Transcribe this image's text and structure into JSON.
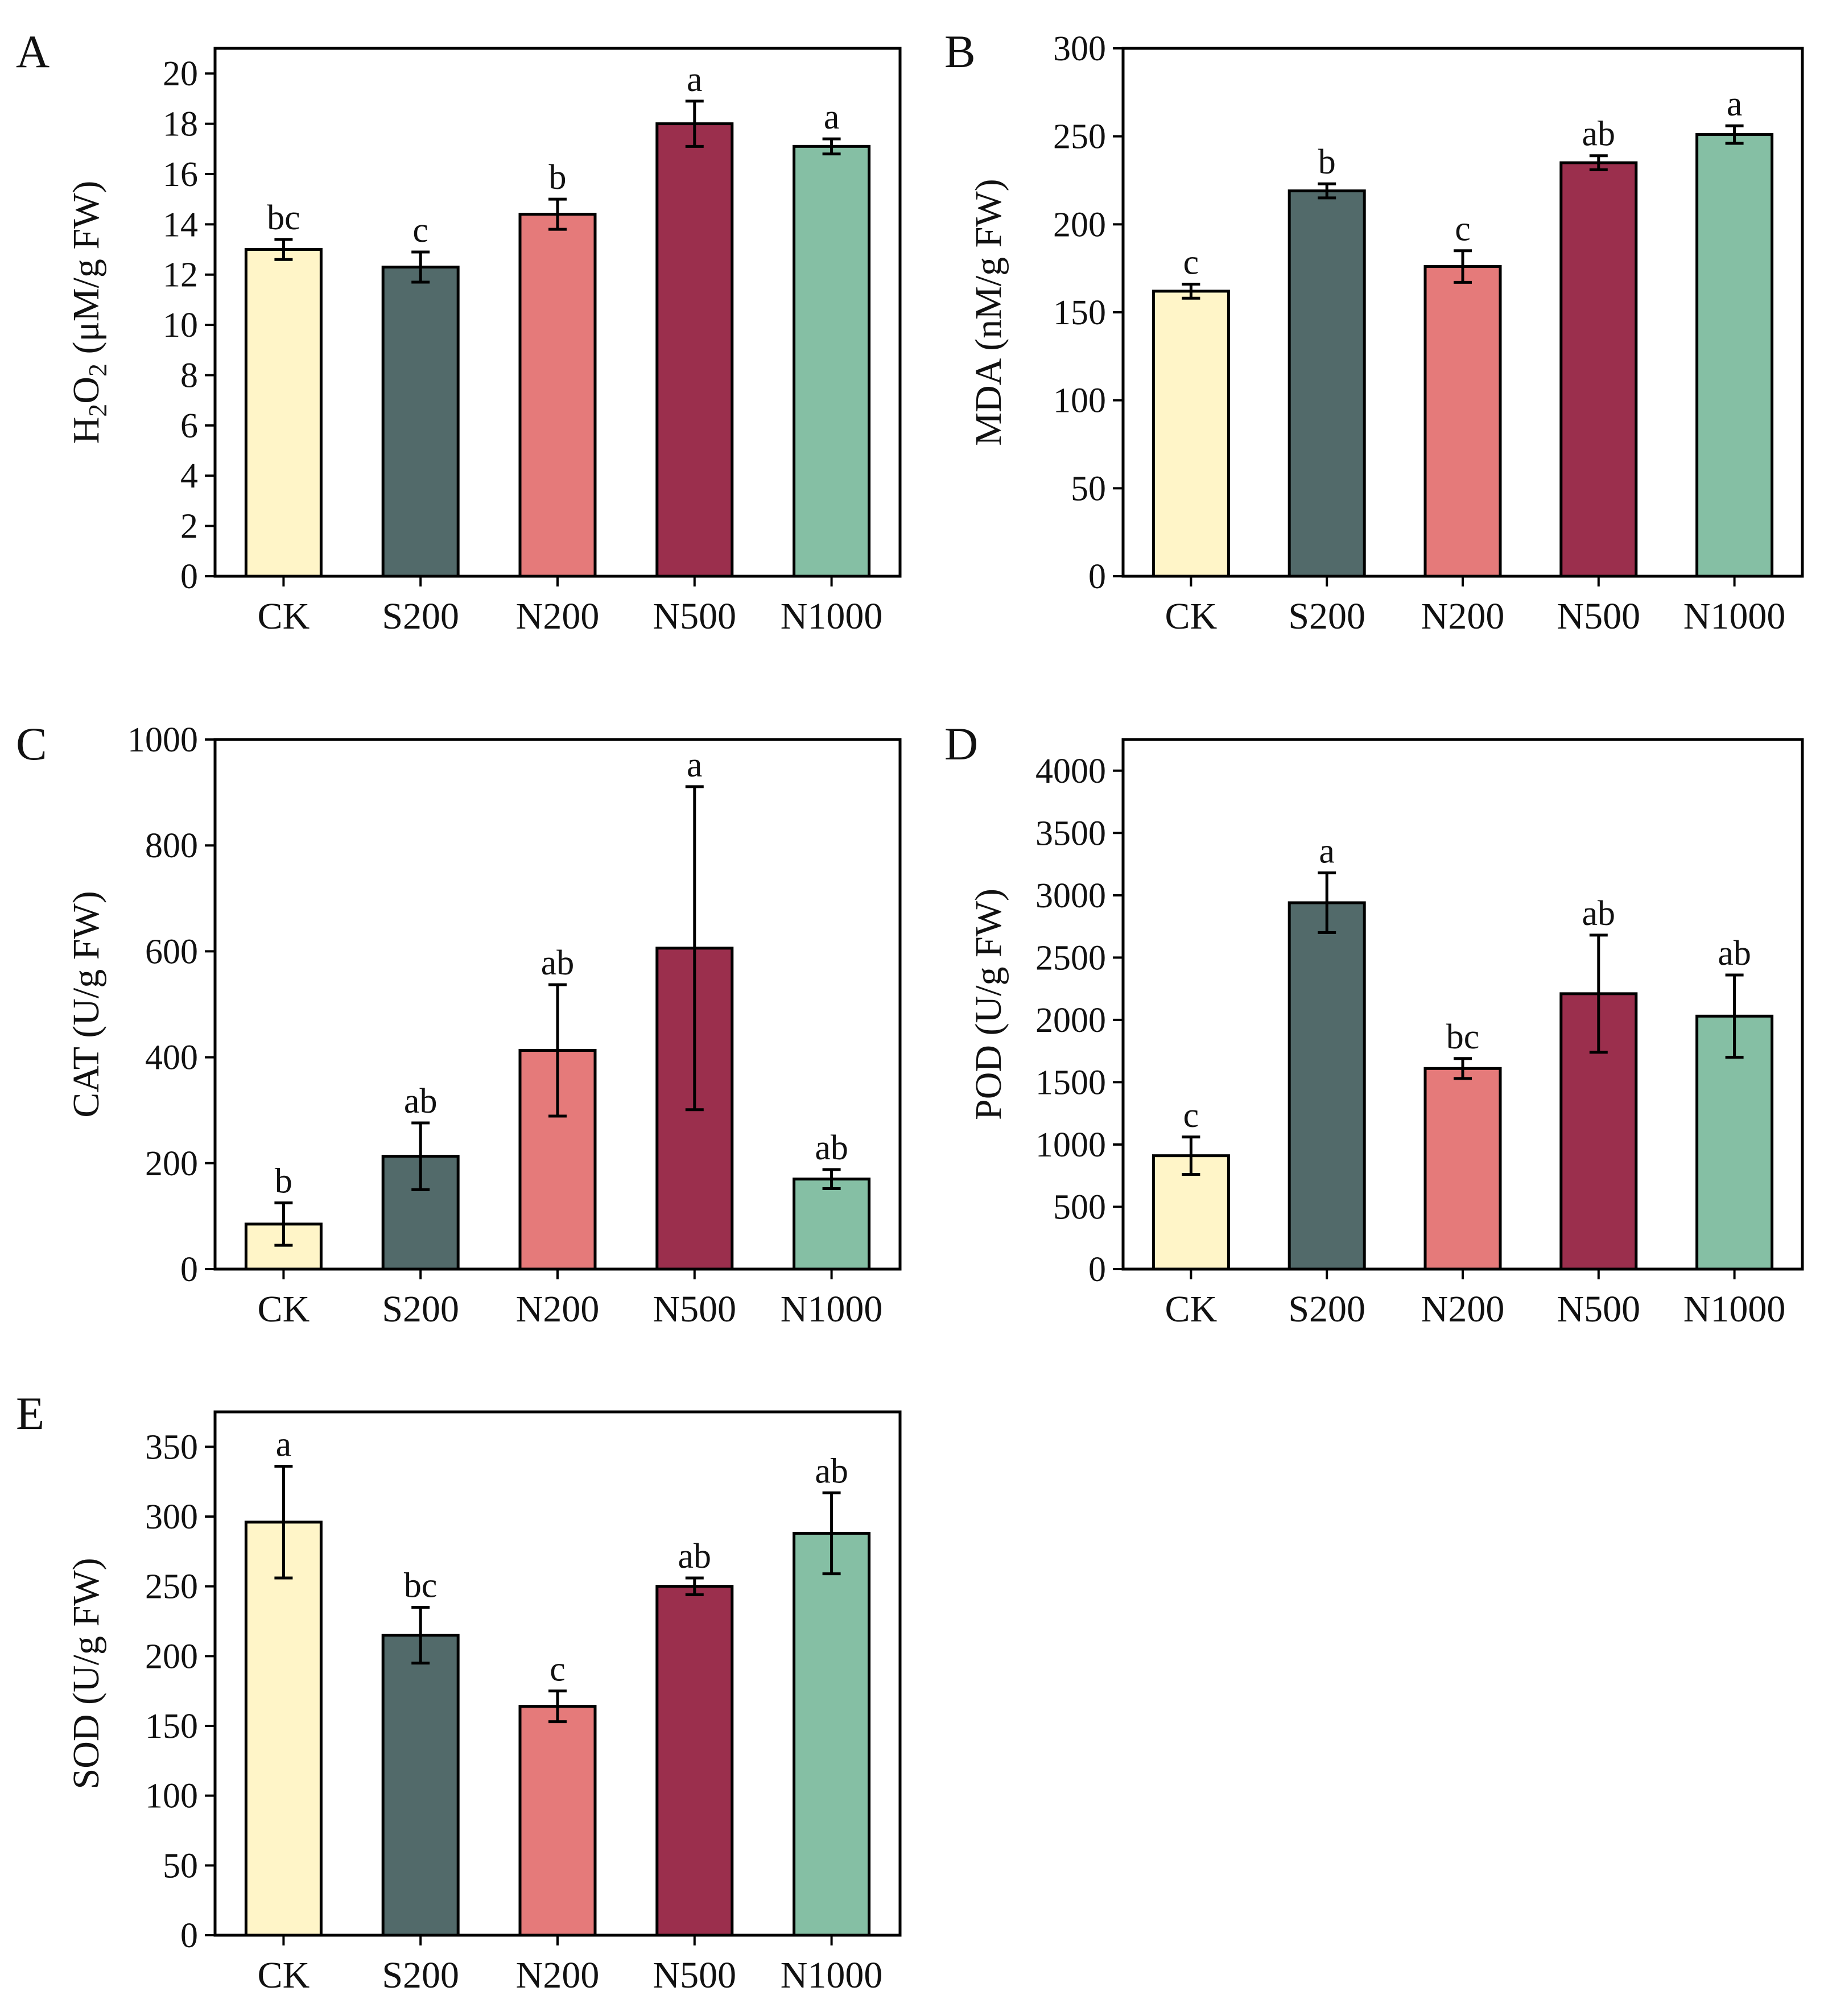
{
  "colors": {
    "CK": "#FFF5C8",
    "S200": "#526A6A",
    "N200": "#E57A7A",
    "N500": "#9B2F4D",
    "N1000": "#85BFA4"
  },
  "chart_data": [
    {
      "type": "bar",
      "panel": "A",
      "ylabel": "H2O2 (μM/g FW)",
      "ylabel_parts": {
        "p1": "H",
        "sub1": "2",
        "p2": "O",
        "sub2": "2",
        "p3": " (μM/g FW)"
      },
      "categories": [
        "CK",
        "S200",
        "N200",
        "N500",
        "N1000"
      ],
      "values": [
        13.0,
        12.3,
        14.4,
        18.0,
        17.1
      ],
      "errors": [
        0.4,
        0.6,
        0.6,
        0.9,
        0.3
      ],
      "significance": [
        "bc",
        "c",
        "b",
        "a",
        "a"
      ],
      "ylim": [
        0,
        21
      ],
      "yticks": [
        0,
        2,
        4,
        6,
        8,
        10,
        12,
        14,
        16,
        18,
        20
      ]
    },
    {
      "type": "bar",
      "panel": "B",
      "ylabel": "MDA (nM/g FW)",
      "categories": [
        "CK",
        "S200",
        "N200",
        "N500",
        "N1000"
      ],
      "values": [
        162,
        219,
        176,
        235,
        251
      ],
      "errors": [
        4,
        4,
        9,
        4,
        5
      ],
      "significance": [
        "c",
        "b",
        "c",
        "ab",
        "a"
      ],
      "ylim": [
        0,
        300
      ],
      "yticks": [
        0,
        50,
        100,
        150,
        200,
        250,
        300
      ]
    },
    {
      "type": "bar",
      "panel": "C",
      "ylabel": "CAT (U/g FW)",
      "categories": [
        "CK",
        "S200",
        "N200",
        "N500",
        "N1000"
      ],
      "values": [
        85,
        213,
        413,
        606,
        170
      ],
      "errors": [
        40,
        63,
        124,
        305,
        18
      ],
      "significance": [
        "b",
        "ab",
        "ab",
        "a",
        "ab"
      ],
      "ylim": [
        0,
        1000
      ],
      "yticks": [
        0,
        200,
        400,
        600,
        800,
        1000
      ]
    },
    {
      "type": "bar",
      "panel": "D",
      "ylabel": "POD (U/g FW)",
      "categories": [
        "CK",
        "S200",
        "N200",
        "N500",
        "N1000"
      ],
      "values": [
        910,
        2940,
        1610,
        2210,
        2030
      ],
      "errors": [
        150,
        240,
        80,
        470,
        330
      ],
      "significance": [
        "c",
        "a",
        "bc",
        "ab",
        "ab"
      ],
      "ylim": [
        0,
        4250
      ],
      "yticks": [
        0,
        500,
        1000,
        1500,
        2000,
        2500,
        3000,
        3500,
        4000
      ]
    },
    {
      "type": "bar",
      "panel": "E",
      "ylabel": "SOD (U/g FW)",
      "categories": [
        "CK",
        "S200",
        "N200",
        "N500",
        "N1000"
      ],
      "values": [
        296,
        215,
        164,
        250,
        288
      ],
      "errors": [
        40,
        20,
        11,
        6,
        29
      ],
      "significance": [
        "a",
        "bc",
        "c",
        "ab",
        "ab"
      ],
      "ylim": [
        0,
        375
      ],
      "yticks": [
        0,
        50,
        100,
        150,
        200,
        250,
        300,
        350
      ]
    }
  ]
}
